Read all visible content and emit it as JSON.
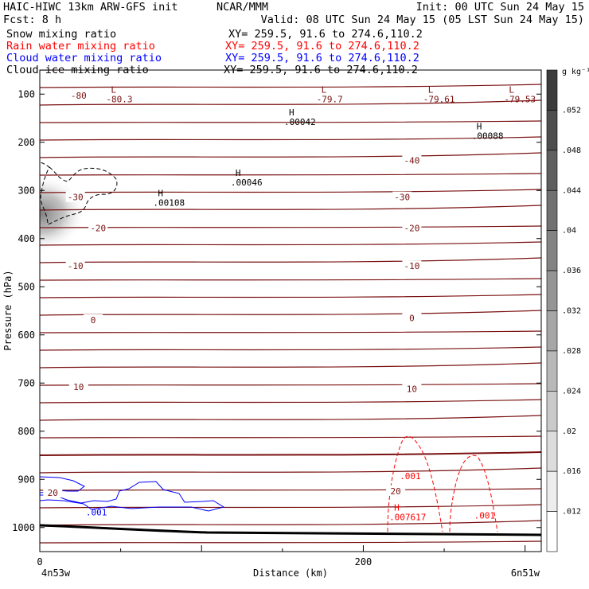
{
  "header": {
    "line1_left": "HAIC-HIWC 13km ARW-GFS init",
    "line1_mid": "NCAR/MMM",
    "line1_right": "Init: 00 UTC Sun 24 May 15",
    "line2_left": "Fcst:    8 h",
    "line2_right": "Valid: 08 UTC Sun 24 May 15 (05 LST Sun 24 May 15)",
    "fields": [
      {
        "name": "Snow mixing ratio",
        "xy": "XY= 259.5, 91.6 to 274.6,110.2",
        "color": "#000000"
      },
      {
        "name": "Rain water mixing ratio",
        "xy": "XY= 259.5, 91.6 to 274.6,110.2",
        "color": "#ff0000"
      },
      {
        "name": "Cloud water mixing ratio",
        "xy": "XY= 259.5, 91.6 to 274.6,110.2",
        "color": "#0000ff"
      },
      {
        "name": "Cloud ice mixing ratio",
        "xy": "XY= 259.5, 91.6 to 274.6,110.2",
        "color": "#000000"
      }
    ]
  },
  "chart_data": {
    "type": "contour",
    "xlabel": "Distance (km)",
    "ylabel": "Pressure (hPa)",
    "xlim": [
      0,
      310
    ],
    "ylim": [
      1050,
      50
    ],
    "x_ticks": [
      0,
      200
    ],
    "y_ticks": [
      100,
      200,
      300,
      400,
      500,
      600,
      700,
      800,
      900,
      1000
    ],
    "endpoints": {
      "left": "4n53w",
      "right": "6n51w"
    },
    "colorbar": {
      "unit": "g kg⁻¹",
      "levels": [
        ".012",
        ".016",
        ".02",
        ".024",
        ".028",
        ".032",
        ".036",
        ".04",
        ".044",
        ".048",
        ".052"
      ]
    },
    "temperature_labels": [
      {
        "text": "-80",
        "x": 24,
        "p": 103
      },
      {
        "text": "-40",
        "x": 230,
        "p": 238
      },
      {
        "text": "-30",
        "x": 22,
        "p": 314
      },
      {
        "text": "-30",
        "x": 224,
        "p": 314
      },
      {
        "text": "-20",
        "x": 36,
        "p": 378
      },
      {
        "text": "-20",
        "x": 230,
        "p": 378
      },
      {
        "text": "-10",
        "x": 22,
        "p": 457
      },
      {
        "text": "-10",
        "x": 230,
        "p": 457
      },
      {
        "text": "0",
        "x": 33,
        "p": 569
      },
      {
        "text": "0",
        "x": 230,
        "p": 565
      },
      {
        "text": "10",
        "x": 24,
        "p": 708
      },
      {
        "text": "10",
        "x": 230,
        "p": 712
      },
      {
        "text": "20",
        "x": 8,
        "p": 928
      },
      {
        "text": "20",
        "x": 220,
        "p": 924
      }
    ],
    "extrema": [
      {
        "kind": "L",
        "value": "-80.3",
        "x": 44,
        "p": 107
      },
      {
        "kind": "L",
        "value": "-79.7",
        "x": 174,
        "p": 107
      },
      {
        "kind": "L",
        "value": "-79.61",
        "x": 240,
        "p": 107
      },
      {
        "kind": "L",
        "value": "-79.53",
        "x": 290,
        "p": 107
      },
      {
        "kind": "H",
        "value": ".00042",
        "x": 154,
        "p": 154
      },
      {
        "kind": "H",
        "value": ".00088",
        "x": 270,
        "p": 183
      },
      {
        "kind": "H",
        "value": ".00046",
        "x": 121,
        "p": 280
      },
      {
        "kind": "H",
        "value": ".00108",
        "x": 73,
        "p": 322
      },
      {
        "kind": "H",
        "value": ".007617",
        "x": 219,
        "p": 975
      }
    ],
    "mixing_ratio_labels": [
      {
        "text": ".001",
        "x": 229,
        "p": 893,
        "series": "rain"
      },
      {
        "text": ".001",
        "x": 275,
        "p": 975,
        "series": "rain"
      },
      {
        "text": ".001",
        "x": 35,
        "p": 968,
        "series": "cloud_water"
      }
    ]
  }
}
